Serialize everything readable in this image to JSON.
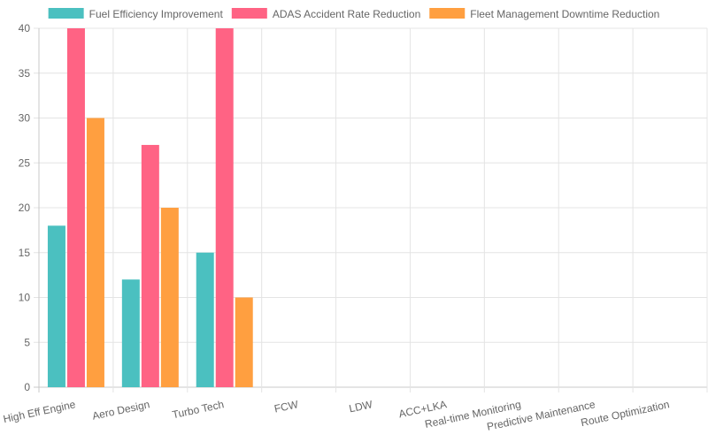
{
  "chart_data": {
    "type": "bar",
    "categories": [
      "High Eff Engine",
      "Aero Design",
      "Turbo Tech",
      "FCW",
      "LDW",
      "ACC+LKA",
      "Real-time Monitoring",
      "Predictive Maintenance",
      "Route Optimization"
    ],
    "series": [
      {
        "name": "Fuel Efficiency Improvement",
        "color": "#4bc0c0",
        "values": [
          18,
          12,
          15,
          0,
          0,
          0,
          0,
          0,
          0
        ]
      },
      {
        "name": "ADAS Accident Rate Reduction",
        "color": "#ff6384",
        "values": [
          40,
          27,
          40,
          0,
          0,
          0,
          0,
          0,
          0
        ]
      },
      {
        "name": "Fleet Management Downtime Reduction",
        "color": "#ff9f40",
        "values": [
          30,
          20,
          10,
          0,
          0,
          0,
          0,
          0,
          0
        ]
      }
    ],
    "ylim": [
      0,
      40
    ],
    "yticks": [
      0,
      5,
      10,
      15,
      20,
      25,
      30,
      35,
      40
    ],
    "grid": true,
    "legend_position": "top"
  }
}
